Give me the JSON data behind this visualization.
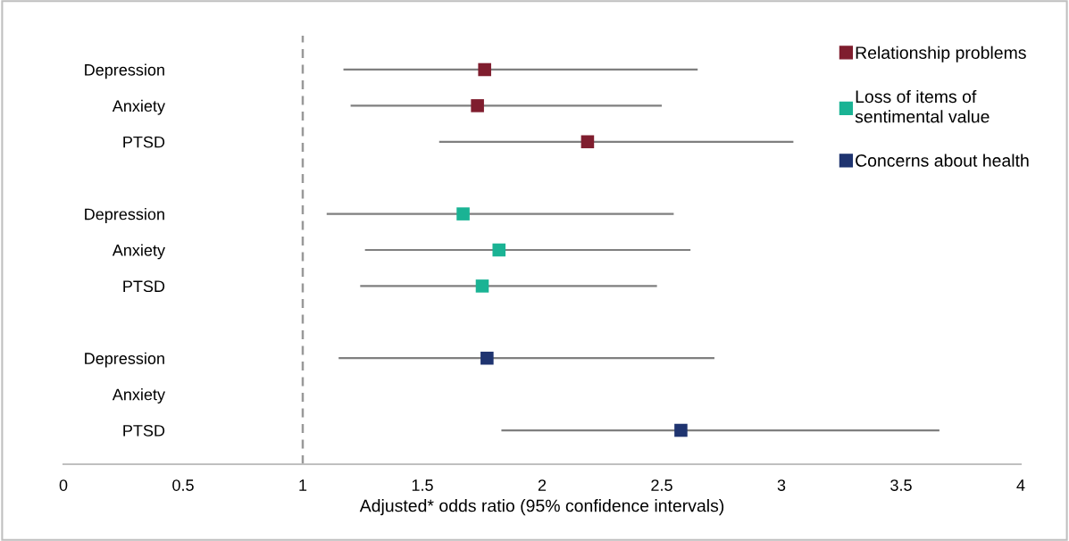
{
  "chart_data": {
    "type": "scatter",
    "orientation": "horizontal",
    "xlabel": "Adjusted* odds ratio (95% confidence intervals)",
    "categories": [
      "Depression",
      "Anxiety",
      "PTSD",
      null,
      "Depression",
      "Anxiety",
      "PTSD",
      null,
      "Depression",
      "Anxiety",
      "PTSD"
    ],
    "series": [
      {
        "name": "Relationship problems",
        "color": "#7f1d2e",
        "values": [
          1.76,
          1.73,
          2.19,
          null,
          null,
          null,
          null,
          null,
          null,
          null,
          null
        ],
        "errors": [
          [
            1.17,
            2.65
          ],
          [
            1.2,
            2.5
          ],
          [
            1.57,
            3.05
          ],
          null,
          null,
          null,
          null,
          null,
          null,
          null,
          null
        ]
      },
      {
        "name": "Loss of items of\nsentimental value",
        "color": "#1ab394",
        "values": [
          null,
          null,
          null,
          null,
          1.67,
          1.82,
          1.75,
          null,
          null,
          null,
          null
        ],
        "errors": [
          null,
          null,
          null,
          null,
          [
            1.1,
            2.55
          ],
          [
            1.26,
            2.62
          ],
          [
            1.24,
            2.48
          ],
          null,
          null,
          null,
          null
        ]
      },
      {
        "name": "Concerns about health",
        "color": "#1f3470",
        "values": [
          null,
          null,
          null,
          null,
          null,
          null,
          null,
          null,
          1.77,
          null,
          2.58
        ],
        "errors": [
          null,
          null,
          null,
          null,
          null,
          null,
          null,
          null,
          [
            1.15,
            2.72
          ],
          null,
          [
            1.83,
            3.66
          ]
        ]
      }
    ],
    "xlim": [
      0,
      4
    ],
    "xticks": [
      0,
      0.5,
      1,
      1.5,
      2,
      2.5,
      3,
      3.5,
      4
    ],
    "ref_lines": [
      {
        "axis": "x",
        "value": 1,
        "color": "#999999",
        "line_style": "dashed"
      }
    ],
    "marker": "square",
    "legend": "top right",
    "grid": false
  }
}
